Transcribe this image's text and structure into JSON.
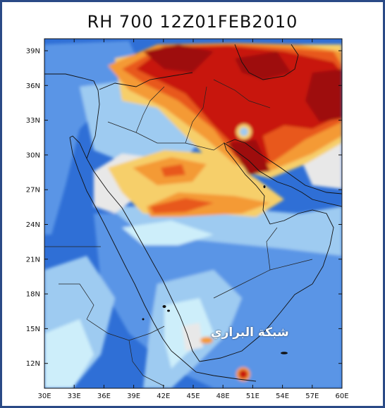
{
  "title": "RH 700  12Z01FEB2010",
  "watermark": "شبكة البراري",
  "palette": {
    "deep_blue": "#2f6fd6",
    "blue": "#5a95e6",
    "light_blue": "#9ecbf1",
    "pale_cyan": "#cdeefa",
    "grey": "#e8e8e8",
    "yellow": "#f6cf6a",
    "orange": "#f49a35",
    "red_orange": "#e8581c",
    "red": "#c8180e",
    "dark_red": "#9e0a0a",
    "frame_border": "#2a4a86"
  },
  "axes": {
    "lat_labels": [
      "39N",
      "36N",
      "33N",
      "30N",
      "27N",
      "24N",
      "21N",
      "18N",
      "15N",
      "12N"
    ],
    "lon_labels": [
      "30E",
      "33E",
      "36E",
      "39E",
      "42E",
      "45E",
      "48E",
      "51E",
      "54E",
      "57E",
      "60E"
    ]
  }
}
